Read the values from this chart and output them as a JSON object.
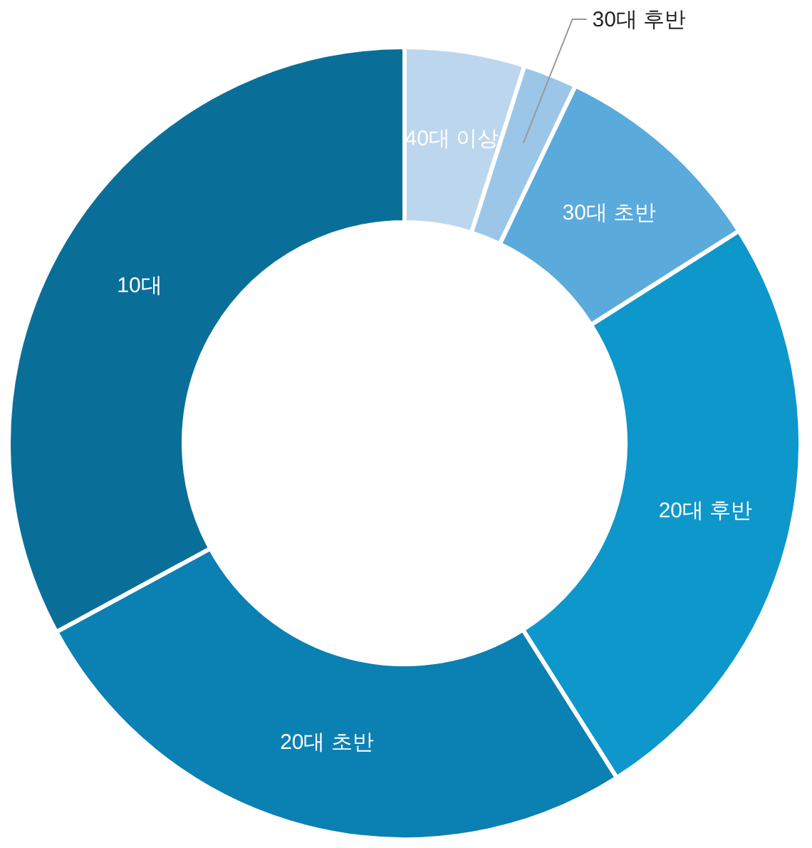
{
  "chart_data": {
    "type": "donut",
    "categories": [
      "40대 이상",
      "30대 후반",
      "30대 초반",
      "20대 후반",
      "20대 초반",
      "10대"
    ],
    "values": [
      4.9,
      2.2,
      8.9,
      25.0,
      26.1,
      32.9
    ],
    "colors": [
      "#bcd7ed",
      "#9bc6e8",
      "#5aaadb",
      "#0e97cb",
      "#0b80b3",
      "#0a6f98"
    ]
  }
}
